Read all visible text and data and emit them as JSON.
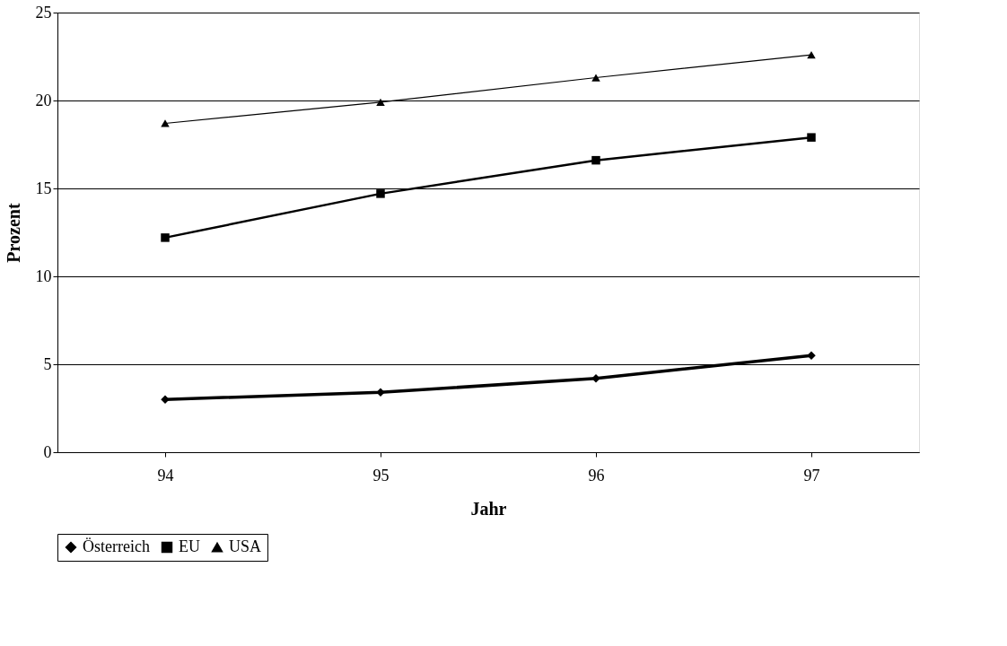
{
  "chart_data": {
    "type": "line",
    "xlabel": "Jahr",
    "ylabel": "Prozent",
    "categories": [
      "94",
      "95",
      "96",
      "97"
    ],
    "series": [
      {
        "name": "Österreich",
        "color": "#000000",
        "marker": "diamond",
        "values": [
          3.0,
          3.4,
          4.2,
          5.5
        ]
      },
      {
        "name": "EU",
        "color": "#000000",
        "marker": "square",
        "values": [
          12.2,
          14.7,
          16.6,
          17.9
        ]
      },
      {
        "name": "USA",
        "color": "#000000",
        "marker": "triangle",
        "values": [
          18.7,
          19.9,
          21.3,
          22.6
        ]
      }
    ],
    "ylim": [
      0,
      25
    ],
    "yticks": [
      0,
      5,
      10,
      15,
      20,
      25
    ],
    "grid": "y",
    "legend": "bottom",
    "line_style": "solid"
  }
}
